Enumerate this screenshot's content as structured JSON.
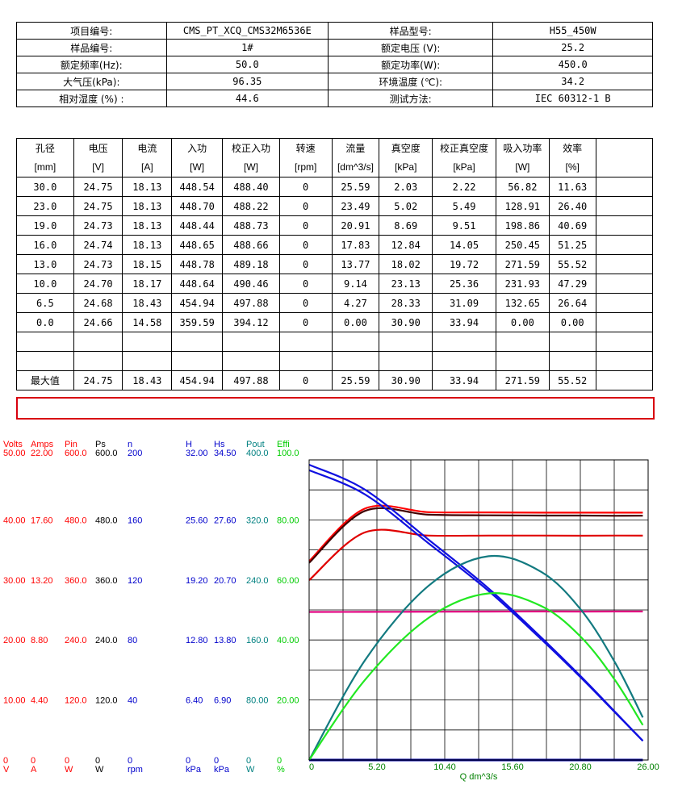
{
  "info": {
    "rows": [
      [
        "项目编号:",
        "CMS_PT_XCQ_CMS32M6536E",
        "样品型号:",
        "H55_450W"
      ],
      [
        "样品编号:",
        "1#",
        "额定电压 (V):",
        "25.2"
      ],
      [
        "额定频率(Hz):",
        "50.0",
        "额定功率(W):",
        "450.0"
      ],
      [
        "大气压(kPa):",
        "96.35",
        "环境温度 (℃):",
        "34.2"
      ],
      [
        "相对湿度 (%) :",
        "44.6",
        "测试方法:",
        "IEC 60312-1 B"
      ]
    ]
  },
  "table": {
    "headers": [
      "孔径",
      "电压",
      "电流",
      "入功",
      "校正入功",
      "转速",
      "流量",
      "真空度",
      "校正真空度",
      "吸入功率",
      "效率",
      ""
    ],
    "units": [
      "[mm]",
      "[V]",
      "[A]",
      "[W]",
      "[W]",
      "[rpm]",
      "[dm^3/s]",
      "[kPa]",
      "[kPa]",
      "[W]",
      "[%]",
      ""
    ],
    "rows": [
      [
        "30.0",
        "24.75",
        "18.13",
        "448.54",
        "488.40",
        "0",
        "25.59",
        "2.03",
        "2.22",
        "56.82",
        "11.63",
        ""
      ],
      [
        "23.0",
        "24.75",
        "18.13",
        "448.70",
        "488.22",
        "0",
        "23.49",
        "5.02",
        "5.49",
        "128.91",
        "26.40",
        ""
      ],
      [
        "19.0",
        "24.73",
        "18.13",
        "448.44",
        "488.73",
        "0",
        "20.91",
        "8.69",
        "9.51",
        "198.86",
        "40.69",
        ""
      ],
      [
        "16.0",
        "24.74",
        "18.13",
        "448.65",
        "488.66",
        "0",
        "17.83",
        "12.84",
        "14.05",
        "250.45",
        "51.25",
        ""
      ],
      [
        "13.0",
        "24.73",
        "18.15",
        "448.78",
        "489.18",
        "0",
        "13.77",
        "18.02",
        "19.72",
        "271.59",
        "55.52",
        ""
      ],
      [
        "10.0",
        "24.70",
        "18.17",
        "448.64",
        "490.46",
        "0",
        "9.14",
        "23.13",
        "25.36",
        "231.93",
        "47.29",
        ""
      ],
      [
        "6.5",
        "24.68",
        "18.43",
        "454.94",
        "497.88",
        "0",
        "4.27",
        "28.33",
        "31.09",
        "132.65",
        "26.64",
        ""
      ],
      [
        "0.0",
        "24.66",
        "14.58",
        "359.59",
        "394.12",
        "0",
        "0.00",
        "30.90",
        "33.94",
        "0.00",
        "0.00",
        ""
      ],
      [
        "",
        "",
        "",
        "",
        "",
        "",
        "",
        "",
        "",
        "",
        "",
        ""
      ],
      [
        "",
        "",
        "",
        "",
        "",
        "",
        "",
        "",
        "",
        "",
        "",
        ""
      ]
    ],
    "max_row": [
      "最大值",
      "24.75",
      "18.43",
      "454.94",
      "497.88",
      "0",
      "25.59",
      "30.90",
      "33.94",
      "271.59",
      "55.52",
      ""
    ],
    "max_color": "#d8000f"
  },
  "chart_data": {
    "type": "line",
    "xlabel": "Q  dm^3/s",
    "x_ticks": [
      "0",
      "5.20",
      "10.40",
      "15.60",
      "20.80",
      "26.00"
    ],
    "xlim": [
      0,
      26
    ],
    "scales": [
      {
        "name": "Volts",
        "unit": "V",
        "color": "#ff0000",
        "ticks": [
          "0",
          "10.00",
          "20.00",
          "30.00",
          "40.00",
          "50.00"
        ],
        "max": 50
      },
      {
        "name": "Amps",
        "unit": "A",
        "color": "#ff0000",
        "ticks": [
          "0",
          "4.40",
          "8.80",
          "13.20",
          "17.60",
          "22.00"
        ],
        "max": 22
      },
      {
        "name": "Pin",
        "unit": "W",
        "color": "#ff0000",
        "ticks": [
          "0",
          "120.0",
          "240.0",
          "360.0",
          "480.0",
          "600.0"
        ],
        "max": 600
      },
      {
        "name": "Ps",
        "unit": "W",
        "color": "#000000",
        "ticks": [
          "0",
          "120.0",
          "240.0",
          "360.0",
          "480.0",
          "600.0"
        ],
        "max": 600
      },
      {
        "name": "n",
        "unit": "rpm",
        "color": "#0000cc",
        "ticks": [
          "0",
          "40",
          "80",
          "120",
          "160",
          "200"
        ],
        "max": 200
      },
      {
        "name": "H",
        "unit": "kPa",
        "color": "#0000cc",
        "ticks": [
          "0",
          "6.40",
          "12.80",
          "19.20",
          "25.60",
          "32.00"
        ],
        "max": 32
      },
      {
        "name": "Hs",
        "unit": "kPa",
        "color": "#0000cc",
        "ticks": [
          "0",
          "6.90",
          "13.80",
          "20.70",
          "27.60",
          "34.50"
        ],
        "max": 34.5
      },
      {
        "name": "Pout",
        "unit": "W",
        "color": "#008080",
        "ticks": [
          "0",
          "80.00",
          "160.0",
          "240.0",
          "320.0",
          "400.0"
        ],
        "max": 400
      },
      {
        "name": "Effi",
        "unit": "%",
        "color": "#00cc00",
        "ticks": [
          "0",
          "20.00",
          "40.00",
          "60.00",
          "80.00",
          "100.0"
        ],
        "max": 100
      }
    ],
    "series": [
      {
        "scale": "Volts",
        "color": "#e0007f",
        "x": [
          0.0,
          4.27,
          9.14,
          13.77,
          17.83,
          20.91,
          23.49,
          25.59
        ],
        "y": [
          24.66,
          24.68,
          24.7,
          24.73,
          24.74,
          24.73,
          24.75,
          24.75
        ]
      },
      {
        "scale": "Amps",
        "color": "#ff0000",
        "x": [
          0.0,
          4.27,
          9.14,
          13.77,
          17.83,
          20.91,
          23.49,
          25.59
        ],
        "y": [
          14.58,
          18.43,
          18.17,
          18.15,
          18.13,
          18.13,
          18.13,
          18.13
        ]
      },
      {
        "scale": "Pin",
        "color": "#e00000",
        "x": [
          0.0,
          4.27,
          9.14,
          13.77,
          17.83,
          20.91,
          23.49,
          25.59
        ],
        "y": [
          359.59,
          454.94,
          448.64,
          448.78,
          448.65,
          448.44,
          448.7,
          448.54
        ]
      },
      {
        "scale": "Ps",
        "color": "#400000",
        "x": [
          0.0,
          4.27,
          9.14,
          13.77,
          17.83,
          20.91,
          23.49,
          25.59
        ],
        "y": [
          394.12,
          497.88,
          490.46,
          489.18,
          488.66,
          488.73,
          488.22,
          488.4
        ]
      },
      {
        "scale": "n",
        "color": "#0000a0",
        "x": [
          0.0,
          4.27,
          9.14,
          13.77,
          17.83,
          20.91,
          23.49,
          25.59
        ],
        "y": [
          0,
          0,
          0,
          0,
          0,
          0,
          0,
          0
        ]
      },
      {
        "scale": "H",
        "color": "#1010e0",
        "x": [
          0.0,
          4.27,
          9.14,
          13.77,
          17.83,
          20.91,
          23.49,
          25.59
        ],
        "y": [
          30.9,
          28.33,
          23.13,
          18.02,
          12.84,
          8.69,
          5.02,
          2.03
        ]
      },
      {
        "scale": "Hs",
        "color": "#1010e0",
        "x": [
          0.0,
          4.27,
          9.14,
          13.77,
          17.83,
          20.91,
          23.49,
          25.59
        ],
        "y": [
          33.94,
          31.09,
          25.36,
          19.72,
          14.05,
          9.51,
          5.49,
          2.22
        ]
      },
      {
        "scale": "Pout",
        "color": "#137a80",
        "x": [
          0.0,
          4.27,
          9.14,
          13.77,
          17.83,
          20.91,
          23.49,
          25.59
        ],
        "y": [
          0.0,
          132.65,
          231.93,
          271.59,
          250.45,
          198.86,
          128.91,
          56.82
        ]
      },
      {
        "scale": "Effi",
        "color": "#22e822",
        "x": [
          0.0,
          4.27,
          9.14,
          13.77,
          17.83,
          20.91,
          23.49,
          25.59
        ],
        "y": [
          0.0,
          26.64,
          47.29,
          55.52,
          51.25,
          40.69,
          26.4,
          11.63
        ]
      }
    ],
    "grid": true
  }
}
